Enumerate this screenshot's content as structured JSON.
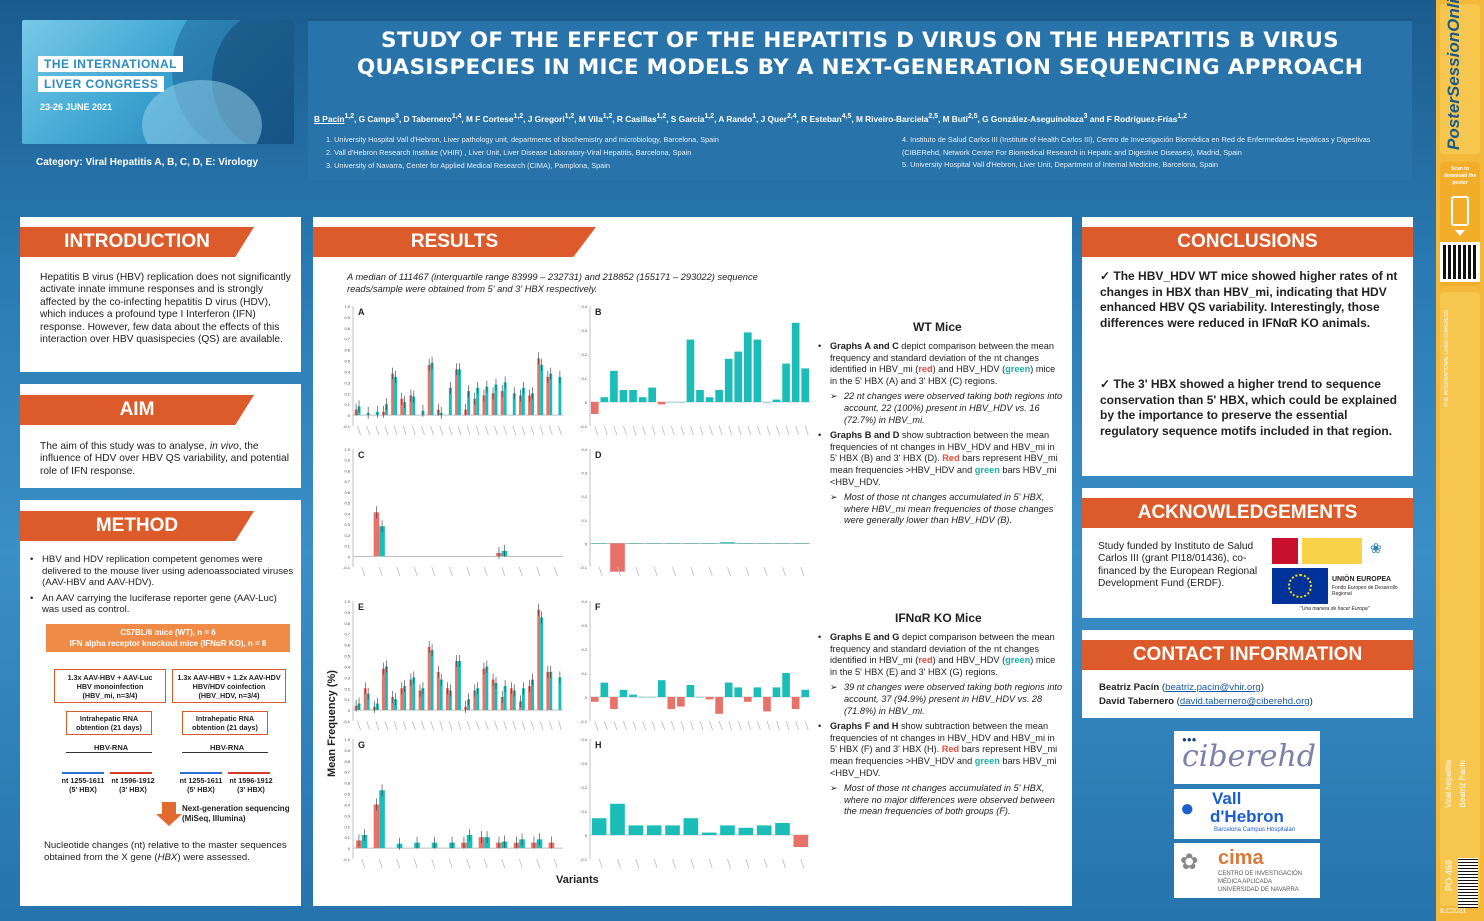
{
  "header": {
    "congress_line1": "THE INTERNATIONAL",
    "congress_line2": "LIVER CONGRESS",
    "congress_dates": "23-26 JUNE 2021",
    "category": "Category: Viral Hepatitis A, B, C, D, E: Virology",
    "title": "STUDY OF THE EFFECT OF THE HEPATITIS D VIRUS ON THE HEPATITIS B VIRUS QUASISPECIES IN MICE MODELS BY A NEXT-GENERATION SEQUENCING APPROACH",
    "authors": "B Pacín1,2, G Camps3, D Tabernero1,4, M F Cortese1,2, J Gregori1,2, M Vila1,2, R Casillas1,2, S García1,2, A Rando1, J Quer2,4, R Esteban4,5, M Riveiro-Barciela2,5, M Buti2,5, G González-Aseguinolaza3 and F Rodríguez-Frías1,2",
    "aff1": "1. University Hospital Vall d'Hebron, Liver pathology unit, departments of biochemistry and microbiology, Barcelona, Spain",
    "aff2": "2. Vall d'Hebron Research Institute (VHIR) , Liver Unit, Liver Disease Laboratory-Viral Hepatitis, Barcelona, Spain",
    "aff3": "3. University of Navarra, Center for Applied Medical Research (CIMA), Pamplona, Spain",
    "aff4": "4. Instituto de Salud Carlos III (Institute of Health Carlos III), Centro de Investigación Biomédica en Red de Enfermedades Hepáticas y Digestivas (CIBERehd, Network Center For Biomedical Research in Hepatic and Digestive Diseases), Madrid, Spain",
    "aff5": "5. University Hospital Vall d'Hebron, Liver Unit, Department of Internal Medicine, Barcelona, Spain"
  },
  "strip": {
    "brand": "PosterSessionOnline",
    "scan": "Scan to download the poster",
    "vert1": "Viral hepatitis",
    "vert2": "Beatriz Pacín",
    "code": "PO-469",
    "footer": "ILC2021",
    "ilc": "THE INTERNATIONAL LIVER CONGRESS"
  },
  "intro": {
    "heading": "INTRODUCTION",
    "text": "Hepatitis B virus (HBV) replication does not significantly activate innate immune responses and is strongly affected by the co-infecting hepatitis D virus (HDV), which induces a profound type I Interferon (IFN) response. However, few data about the effects of this interaction over HBV quasispecies (QS) are available."
  },
  "aim": {
    "heading": "AIM",
    "text_a": "The aim of this study was to analyse, ",
    "text_em": "in vivo",
    "text_b": ", the influence of HDV over HBV QS variability, and potential role of IFN response."
  },
  "method": {
    "heading": "METHOD",
    "b1": "HBV and HDV replication competent genomes were delivered to the mouse liver using adenoassociated viruses (AAV-HBV and AAV-HDV).",
    "b2": "An AAV carrying the luciferase reporter gene (AAV-Luc)  was used as control.",
    "box_top1": "C57BL/6  mice (WT), n = 6",
    "box_top2": "IFN alpha receptor knockout mice (IFNαR KO), n = 8",
    "left1": "1.3x AAV-HBV + AAV-Luc",
    "left2": "HBV monoinfection",
    "left3": "(HBV_mi, n=3/4)",
    "right1": "1.3x AAV-HBV + 1.2x AAV-HDV",
    "right2": "HBV/HDV coinfection",
    "right3": "(HBV_HDV, n=3/4)",
    "rna1": "Intrahepatic RNA",
    "rna2": "obtention (21 days)",
    "hbvrna": "HBV-RNA",
    "nt1": "nt 1255-1611",
    "nt1b": "(5' HBX)",
    "nt2": "nt 1596-1912",
    "nt2b": "(3' HBX)",
    "ngs1": "Next-generation sequencing",
    "ngs2": "(MiSeq, Illumina)",
    "footer_a": "Nucleotide changes (nt) relative to the master sequences obtained from the X gene (",
    "footer_em": "HBX",
    "footer_b": ") were assessed."
  },
  "results": {
    "heading": "RESULTS",
    "median": "A median of 111467 (interquartile range 83999 – 232731) and 218852 (155171 – 293022) sequence reads/sample were obtained from 5' and 3' HBX respectively.",
    "ylabel": "Mean Frequency (%)",
    "xlabel": "Variants",
    "wt_title": "WT Mice",
    "wt_b1_a": "Graphs A and C",
    "wt_b1_b": " depict comparison between the mean frequency and standard deviation of the nt changes identified in HBV_mi (",
    "red": "red",
    "wt_b1_c": ") and HBV_HDV (",
    "green": "green",
    "wt_b1_d": ") mice in the 5' HBX (A) and 3' HBX (C) regions.",
    "wt_s1": "22 nt changes were observed taking both regions into account, 22 (100%) present in HBV_HDV vs. 16 (72.7%) in HBV_mi.",
    "wt_b2_a": "Graphs B and D",
    "wt_b2_b": " show subtraction between the mean frequencies of nt changes in HBV_HDV and HBV_mi in 5' HBX (B) and 3' HBX (D). ",
    "Red": "Red",
    "wt_b2_c": " bars represent HBV_mi mean frequencies >HBV_HDV and ",
    "wt_b2_d": " bars HBV_mi <HBV_HDV.",
    "wt_s2": "Most of those nt changes accumulated in 5' HBX, where HBV_mi mean frequencies of those changes were generally lower than HBV_HDV (B).",
    "ko_title": "IFNαR KO Mice",
    "ko_b1_a": "Graphs E and G",
    "ko_b1_d": ") mice in the 5' HBX (E) and 3' HBX (G) regions.",
    "ko_s1": "39 nt changes were observed taking both regions into account, 37 (94.9%) present in HBV_HDV vs. 28 (71.8%) in HBV_mi.",
    "ko_b2_a": "Graphs F and H",
    "ko_b2_b": " show subtraction between the mean frequencies of nt changes in HBV_HDV and HBV_mi in 5' HBX (F) and 3' HBX (H). ",
    "ko_b2_c": " bars represent  HBV_mi mean frequencies >HBV_HDV and ",
    "ko_s2": "Most of those nt changes accumulated in 5' HBX, where no major differences were observed between the mean frequencies of both groups (F)."
  },
  "conclusions": {
    "heading": "CONCLUSIONS",
    "c1": "The HBV_HDV WT mice showed higher rates of nt changes in HBX than HBV_mi, indicating that HDV enhanced HBV QS variability. Interestingly, those differences were reduced in IFNαR KO animals.",
    "c2": "The 3' HBX showed a higher trend to sequence conservation than 5' HBX, which could be explained by the importance to preserve the essential regulatory sequence motifs included in that region."
  },
  "ack": {
    "heading": "ACKNOWLEDGEMENTS",
    "text": "Study funded by Instituto de Salud Carlos III (grant PI18/01436), co-financed by the European Regional Development Fund (ERDF).",
    "eu": "UNIÓN EUROPEA",
    "eu2": "Fondo Europeo de Desarrollo Regional",
    "eu3": "\"Una manera de hacer Europa\""
  },
  "contact": {
    "heading": "CONTACT INFORMATION",
    "n1": "Beatriz Pacín",
    "e1": "beatriz.pacin@vhir.org",
    "n2": "David Tabernero",
    "e2": "david.tabernero@ciberehd.org"
  },
  "logos": {
    "ciberehd": "ciberehd",
    "vall1": "Vall",
    "vall2": "d'Hebron",
    "vall3": "Barcelona Campus Hospitalari",
    "cima": "cima",
    "cima2": "CENTRO DE INVESTIGACIÓN",
    "cima3": "MÉDICA APLICADA",
    "cima4": "UNIVERSIDAD DE NAVARRA"
  },
  "colors": {
    "red": "#e8726a",
    "green": "#1bbdb8",
    "orange": "#dd5b2a",
    "blue": "#2873a9"
  },
  "chart_data": [
    {
      "label": "A",
      "type": "bar",
      "ylim": [
        -0.1,
        1.0
      ],
      "yticks": [
        "-0.1",
        "0",
        "0.1",
        "0.2",
        "0.3",
        "0.4",
        "0.5",
        "0.6",
        "0.7",
        "0.8",
        "0.9",
        "1.0"
      ],
      "series": [
        {
          "name": "HBV_mi",
          "values": [
            0.05,
            0,
            0,
            0.03,
            0.38,
            0.15,
            0.18,
            0,
            0.46,
            0.05,
            0,
            0.42,
            0.05,
            0.15,
            0.18,
            0.2,
            0.22,
            0,
            0.18,
            0.18,
            0.52,
            0.35,
            0
          ]
        },
        {
          "name": "HBV_HDV",
          "values": [
            0.08,
            0.02,
            0.03,
            0.1,
            0.35,
            0.12,
            0.17,
            0.04,
            0.48,
            0.02,
            0.25,
            0.42,
            0.22,
            0.25,
            0.26,
            0.28,
            0.3,
            0.2,
            0.25,
            0.2,
            0.46,
            0.38,
            0.35
          ]
        }
      ]
    },
    {
      "label": "B",
      "type": "bar",
      "ylim": [
        -0.1,
        0.4
      ],
      "yticks": [
        "-0.1",
        "0",
        "0.1",
        "0.2",
        "0.3",
        "0.4"
      ],
      "series": [
        {
          "name": "difference",
          "values": [
            -0.05,
            0.02,
            0.13,
            0.05,
            0.05,
            0.02,
            0.06,
            -0.01,
            0.0,
            0.0,
            0.26,
            0.05,
            0.02,
            0.05,
            0.18,
            0.21,
            0.29,
            0.26,
            0.0,
            0.01,
            0.16,
            0.33,
            0.14
          ]
        }
      ]
    },
    {
      "label": "C",
      "type": "bar",
      "ylim": [
        -0.1,
        1.0
      ],
      "yticks": [
        "-0.1",
        "0",
        "0.1",
        "0.2",
        "0.3",
        "0.4",
        "0.5",
        "0.6",
        "0.7",
        "0.8",
        "0.9",
        "1.0"
      ],
      "series": [
        {
          "name": "HBV_mi",
          "values": [
            0,
            0.41,
            0,
            0,
            0,
            0,
            0,
            0,
            0.03,
            0,
            0,
            0
          ]
        },
        {
          "name": "HBV_HDV",
          "values": [
            0,
            0.28,
            0,
            0,
            0,
            0,
            0,
            0,
            0.05,
            0,
            0,
            0
          ]
        }
      ]
    },
    {
      "label": "D",
      "type": "bar",
      "ylim": [
        -0.1,
        0.4
      ],
      "yticks": [
        "-0.1",
        "0",
        "0.1",
        "0.2",
        "0.3",
        "0.4"
      ],
      "series": [
        {
          "name": "difference",
          "values": [
            0,
            -0.12,
            0,
            0,
            0,
            0,
            0,
            0.005,
            0,
            0,
            0,
            0
          ]
        }
      ]
    },
    {
      "label": "E",
      "type": "bar",
      "ylim": [
        -0.1,
        1.0
      ],
      "yticks": [
        "-0.1",
        "0",
        "0.1",
        "0.2",
        "0.3",
        "0.4",
        "0.5",
        "0.6",
        "0.7",
        "0.8",
        "0.9",
        "1.0"
      ],
      "series": [
        {
          "name": "HBV_mi",
          "values": [
            0.04,
            0.2,
            0.03,
            0.38,
            0.12,
            0.2,
            0.28,
            0.18,
            0.58,
            0.35,
            0.2,
            0.45,
            0.03,
            0.18,
            0.38,
            0.28,
            0.12,
            0.2,
            0.08,
            0.22,
            0.92,
            0.35,
            0
          ]
        },
        {
          "name": "HBV_HDV",
          "values": [
            0.06,
            0.15,
            0.06,
            0.4,
            0.1,
            0.22,
            0.3,
            0.2,
            0.55,
            0.28,
            0.18,
            0.45,
            0.1,
            0.2,
            0.4,
            0.25,
            0.22,
            0.18,
            0.2,
            0.28,
            0.85,
            0.35,
            0.3
          ]
        }
      ]
    },
    {
      "label": "F",
      "type": "bar",
      "ylim": [
        -0.1,
        0.4
      ],
      "yticks": [
        "-0.1",
        "0",
        "0.1",
        "0.2",
        "0.3",
        "0.4"
      ],
      "series": [
        {
          "name": "difference",
          "values": [
            -0.02,
            0.06,
            -0.05,
            0.03,
            0.01,
            0.0,
            0.0,
            0.07,
            -0.05,
            -0.04,
            0.05,
            0.0,
            -0.01,
            -0.07,
            0.06,
            0.04,
            -0.02,
            0.04,
            -0.06,
            0.04,
            0.1,
            -0.05,
            0.03
          ]
        }
      ]
    },
    {
      "label": "G",
      "type": "bar",
      "ylim": [
        -0.1,
        1.0
      ],
      "yticks": [
        "-0.1",
        "0",
        "0.1",
        "0.2",
        "0.3",
        "0.4",
        "0.5",
        "0.6",
        "0.7",
        "0.8",
        "0.9",
        "1.0"
      ],
      "series": [
        {
          "name": "HBV_mi",
          "values": [
            0.07,
            0.4,
            0,
            0,
            0,
            0,
            0.05,
            0.1,
            0.05,
            0.05,
            0.05,
            0.05
          ]
        },
        {
          "name": "HBV_HDV",
          "values": [
            0.12,
            0.53,
            0.04,
            0.05,
            0.05,
            0.05,
            0.12,
            0.1,
            0.06,
            0.08,
            0.08,
            0
          ]
        }
      ]
    },
    {
      "label": "H",
      "type": "bar",
      "ylim": [
        -0.1,
        0.4
      ],
      "yticks": [
        "-0.1",
        "0",
        "0.1",
        "0.2",
        "0.3",
        "0.4"
      ],
      "series": [
        {
          "name": "difference",
          "values": [
            0.07,
            0.13,
            0.04,
            0.04,
            0.04,
            0.07,
            0.01,
            0.04,
            0.03,
            0.04,
            0.05,
            -0.05
          ]
        }
      ]
    }
  ]
}
